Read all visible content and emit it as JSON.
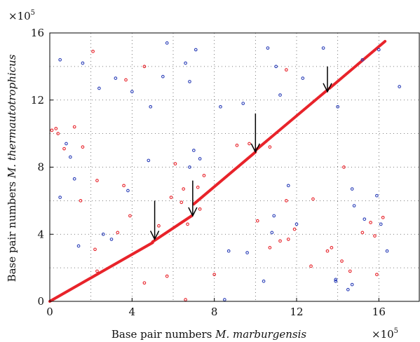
{
  "chart_data": {
    "type": "scatter",
    "title": "",
    "xlabel": {
      "prefix": "Base pair numbers ",
      "italic": "M. marburgensis"
    },
    "ylabel": {
      "prefix": "Base pair numbers ",
      "italic": "M. thermautotrophicus"
    },
    "x_exponent": {
      "base": "×10",
      "exp": "5"
    },
    "y_exponent": {
      "base": "×10",
      "exp": "5"
    },
    "xlim": [
      0,
      18
    ],
    "ylim": [
      0,
      16
    ],
    "xticks": [
      0,
      4,
      8,
      12,
      16
    ],
    "yticks": [
      0,
      4,
      8,
      12,
      16
    ],
    "grid": true,
    "grid_x": [
      2,
      4,
      6,
      8,
      10,
      12,
      14,
      16
    ],
    "grid_y": [
      2,
      4,
      6,
      8,
      10,
      12,
      14,
      16
    ],
    "colors": {
      "forward": "#e8232a",
      "reverse": "#2b3fb8",
      "arrow": "#000000"
    },
    "diagonal_segments": [
      {
        "x": [
          0.0,
          5.0
        ],
        "y": [
          0.0,
          3.5
        ]
      },
      {
        "x": [
          5.0,
          6.9
        ],
        "y": [
          3.55,
          5.1
        ]
      },
      {
        "x": [
          7.0,
          10.0
        ],
        "y": [
          5.8,
          8.9
        ]
      },
      {
        "x": [
          10.0,
          13.5
        ],
        "y": [
          9.0,
          12.6
        ]
      },
      {
        "x": [
          13.6,
          16.3
        ],
        "y": [
          12.7,
          15.5
        ]
      }
    ],
    "arrows": [
      {
        "x": 5.1,
        "y_top": 6.0,
        "y_tip": 3.7
      },
      {
        "x": 6.95,
        "y_top": 7.2,
        "y_tip": 5.1
      },
      {
        "x": 10.0,
        "y_top": 11.2,
        "y_tip": 8.9
      },
      {
        "x": 13.5,
        "y_top": 14.0,
        "y_tip": 12.5
      }
    ],
    "series": [
      {
        "name": "",
        "color": "#e8232a",
        "x": [
          2.1,
          4.6,
          3.7,
          1.2,
          0.7,
          1.6,
          0.3,
          0.1,
          0.4,
          2.3,
          3.6,
          3.3,
          2.2,
          1.5,
          3.9,
          5.3,
          6.7,
          6.4,
          7.2,
          7.5,
          7.3,
          6.5,
          5.9,
          9.7,
          9.1,
          10.7,
          11.5,
          10.1,
          11.9,
          12.8,
          14.2,
          14.6,
          15.2,
          15.8,
          15.6,
          16.2,
          15.9,
          11.5,
          11.6,
          11.2,
          10.7,
          13.5,
          13.7,
          14.3,
          12.7,
          6.1,
          2.3,
          4.6,
          5.7,
          6.6,
          8.0
        ],
        "y": [
          14.9,
          14.0,
          13.2,
          10.4,
          9.1,
          9.2,
          10.3,
          10.2,
          10.0,
          7.2,
          6.9,
          4.1,
          3.1,
          6.0,
          5.1,
          4.5,
          4.6,
          5.9,
          6.8,
          7.5,
          5.5,
          6.7,
          6.2,
          9.4,
          9.3,
          9.2,
          13.8,
          4.8,
          4.3,
          6.1,
          2.4,
          1.8,
          4.1,
          3.9,
          4.7,
          5.0,
          1.6,
          6.0,
          3.7,
          3.6,
          3.2,
          3.0,
          3.2,
          8.0,
          2.1,
          8.2,
          1.8,
          1.1,
          1.5,
          0.1,
          1.6
        ]
      },
      {
        "name": "",
        "color": "#2b3fb8",
        "x": [
          0.5,
          1.6,
          2.4,
          3.2,
          5.7,
          5.5,
          6.6,
          7.1,
          6.8,
          4.0,
          4.9,
          4.8,
          0.8,
          1.0,
          1.2,
          3.8,
          8.3,
          9.4,
          10.6,
          11.0,
          11.2,
          12.3,
          13.3,
          14.0,
          15.2,
          16.0,
          17.0,
          0.5,
          1.4,
          3.0,
          2.6,
          8.7,
          9.6,
          10.8,
          11.6,
          12.0,
          13.9,
          14.5,
          14.8,
          16.1,
          15.3,
          16.4,
          8.5,
          10.4,
          13.9,
          14.7,
          14.7,
          15.9,
          7.3,
          7.0,
          6.8,
          10.9
        ],
        "y": [
          14.4,
          14.2,
          12.7,
          13.3,
          15.4,
          13.4,
          14.2,
          15.0,
          13.1,
          12.5,
          11.6,
          8.4,
          9.4,
          8.6,
          7.3,
          6.6,
          11.6,
          11.8,
          15.1,
          14.0,
          12.3,
          13.3,
          15.1,
          11.6,
          14.4,
          15.0,
          12.8,
          6.2,
          3.3,
          3.7,
          4.0,
          3.0,
          2.9,
          4.1,
          6.9,
          4.6,
          1.2,
          0.7,
          5.7,
          4.6,
          4.9,
          3.0,
          0.1,
          1.2,
          1.3,
          1.0,
          6.7,
          6.3,
          8.5,
          9.0,
          8.0,
          5.1
        ]
      }
    ]
  }
}
